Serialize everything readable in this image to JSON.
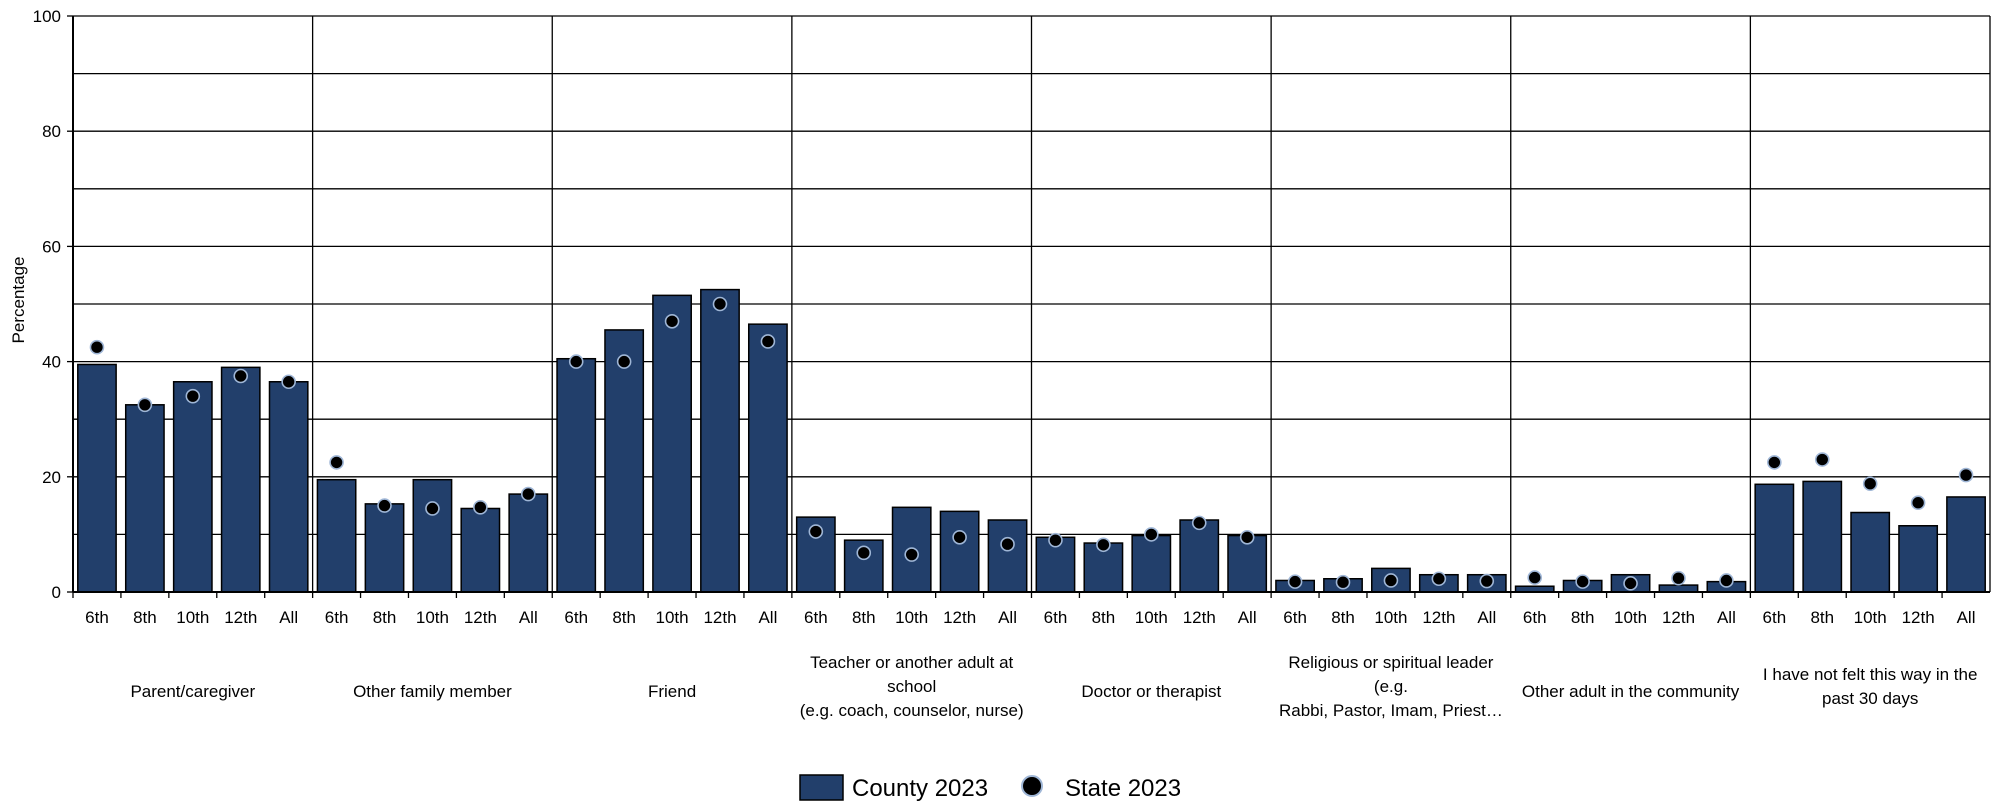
{
  "chart_data": {
    "type": "bar",
    "ylabel": "Percentage",
    "ylim": [
      0,
      100
    ],
    "yticks": [
      0,
      20,
      40,
      60,
      80,
      100
    ],
    "grid": true,
    "legend_placement": "bottom-center",
    "colors": {
      "county": "#223f6b",
      "state": "#000000",
      "state_outline": "#9fb6d6",
      "grid": "#000000"
    },
    "subcategories": [
      "6th",
      "8th",
      "10th",
      "12th",
      "All"
    ],
    "groups": [
      {
        "label_lines": [
          "Parent/caregiver"
        ],
        "county": [
          39.5,
          32.5,
          36.5,
          39,
          36.5
        ],
        "state": [
          42.5,
          32.5,
          34,
          37.5,
          36.5
        ]
      },
      {
        "label_lines": [
          "Other family member"
        ],
        "county": [
          19.5,
          15.3,
          19.5,
          14.5,
          17
        ],
        "state": [
          22.5,
          15,
          14.5,
          14.7,
          17
        ]
      },
      {
        "label_lines": [
          "Friend"
        ],
        "county": [
          40.5,
          45.5,
          51.5,
          52.5,
          46.5
        ],
        "state": [
          40,
          40,
          47,
          50,
          43.5
        ]
      },
      {
        "label_lines": [
          "Teacher or another adult at",
          "school",
          "(e.g. coach, counselor, nurse)"
        ],
        "county": [
          13,
          9,
          14.7,
          14,
          12.5
        ],
        "state": [
          10.5,
          6.8,
          6.5,
          9.5,
          8.3
        ]
      },
      {
        "label_lines": [
          "Doctor or therapist"
        ],
        "county": [
          9.5,
          8.5,
          9.8,
          12.5,
          9.8
        ],
        "state": [
          9,
          8.2,
          10,
          12,
          9.5
        ]
      },
      {
        "label_lines": [
          "Religious or spiritual leader",
          "(e.g.",
          "Rabbi, Pastor, Imam, Priest…"
        ],
        "county": [
          2,
          2.3,
          4.1,
          3,
          3
        ],
        "state": [
          1.8,
          1.7,
          2,
          2.3,
          1.9
        ]
      },
      {
        "label_lines": [
          "Other adult in the community"
        ],
        "county": [
          1,
          2,
          3,
          1.2,
          1.8
        ],
        "state": [
          2.5,
          1.8,
          1.5,
          2.4,
          2
        ]
      },
      {
        "label_lines": [
          "I have not felt this way in the",
          "past 30 days"
        ],
        "county": [
          18.7,
          19.2,
          13.8,
          11.5,
          16.5
        ],
        "state": [
          22.5,
          23,
          18.8,
          15.5,
          20.3
        ]
      }
    ],
    "series": [
      {
        "name": "County 2023",
        "mark": "bar"
      },
      {
        "name": "State 2023",
        "mark": "dot"
      }
    ]
  }
}
